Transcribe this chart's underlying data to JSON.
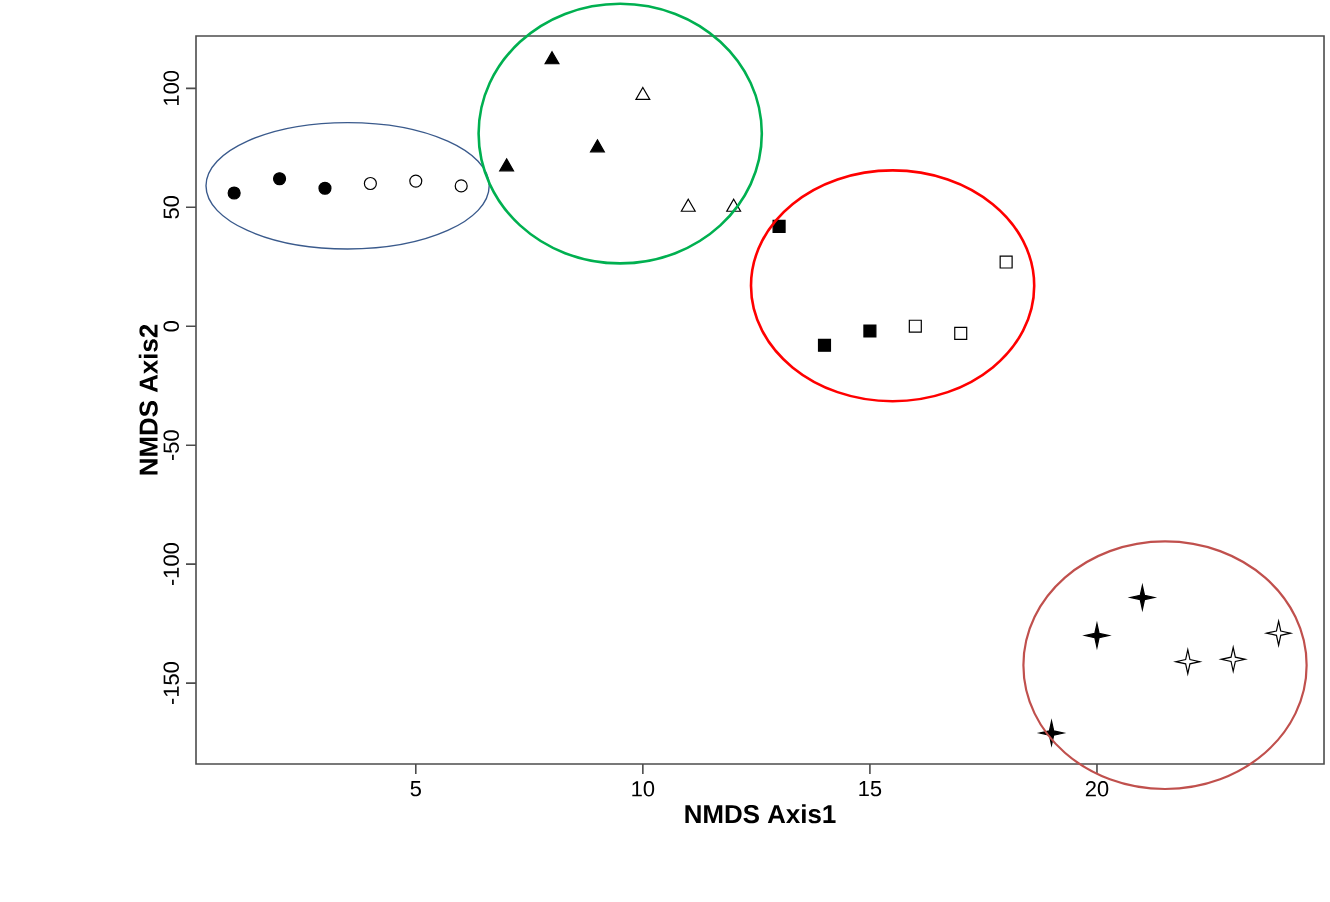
{
  "chart_data": {
    "type": "scatter",
    "xlabel": "NMDS Axis1",
    "ylabel": "NMDS Axis2",
    "xlim": [
      0.16,
      25
    ],
    "ylim": [
      -184,
      122
    ],
    "xticks": [
      5,
      10,
      15,
      20
    ],
    "yticks": [
      -150,
      -100,
      -50,
      0,
      50,
      100
    ],
    "series": [
      {
        "color": "#000000",
        "marker": "circle",
        "x": [
          1,
          2,
          3
        ],
        "values": [
          56,
          62,
          58
        ]
      },
      {
        "color": "#ffffff",
        "marker": "circle",
        "x": [
          4,
          5,
          6
        ],
        "values": [
          60,
          61,
          59
        ]
      },
      {
        "color": "#000000",
        "marker": "triangle",
        "x": [
          7,
          8,
          9
        ],
        "values": [
          67,
          112,
          75
        ]
      },
      {
        "color": "#ffffff",
        "marker": "triangle",
        "x": [
          10,
          11,
          12
        ],
        "values": [
          97,
          50,
          50
        ]
      },
      {
        "color": "#000000",
        "marker": "square",
        "x": [
          13,
          14,
          15
        ],
        "values": [
          42,
          -8,
          -2
        ]
      },
      {
        "color": "#ffffff",
        "marker": "square",
        "x": [
          16,
          17,
          18
        ],
        "values": [
          0,
          -3,
          27
        ]
      },
      {
        "color": "#000000",
        "marker": "star",
        "x": [
          19,
          20,
          21
        ],
        "values": [
          -171,
          -130,
          -114
        ]
      },
      {
        "color": "#ffffff",
        "marker": "star",
        "x": [
          22,
          23,
          24
        ],
        "values": [
          -141,
          -140,
          -129
        ]
      }
    ]
  }
}
